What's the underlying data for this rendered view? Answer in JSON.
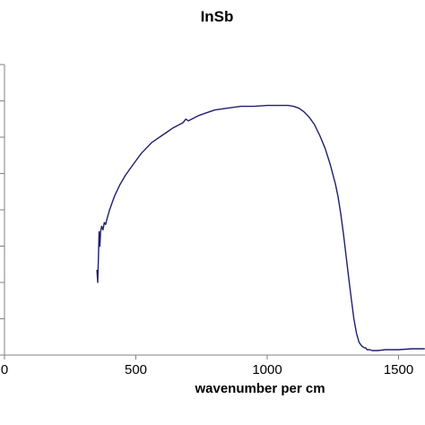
{
  "chart_data": {
    "type": "line",
    "title": "InSb",
    "xlabel": "wavenumber per cm",
    "ylabel": "",
    "xlim": [
      0,
      1600
    ],
    "x_ticks": [
      0,
      500,
      1000,
      1500
    ],
    "x_tick_labels": [
      "0",
      "500",
      "1000",
      "1500"
    ],
    "y_tick_count": 9,
    "grid": false,
    "legend": "none",
    "line_color": "#1f1f6b",
    "series": [
      {
        "x": [
          352,
          355,
          358,
          360,
          363,
          366,
          370,
          375,
          380,
          385,
          390,
          400,
          410,
          420,
          440,
          460,
          480,
          500,
          520,
          540,
          560,
          580,
          600,
          620,
          640,
          660,
          680,
          690,
          700,
          720,
          740,
          760,
          780,
          800,
          850,
          900,
          950,
          1000,
          1050,
          1080,
          1100,
          1120,
          1140,
          1160,
          1180,
          1200,
          1220,
          1240,
          1260,
          1270,
          1280,
          1290,
          1300,
          1310,
          1320,
          1330,
          1340,
          1350,
          1360,
          1370,
          1375,
          1380,
          1390,
          1400,
          1420,
          1450,
          1500,
          1550,
          1600
        ],
        "y": [
          0.45,
          0.38,
          0.54,
          0.66,
          0.58,
          0.66,
          0.69,
          0.67,
          0.71,
          0.7,
          0.73,
          0.78,
          0.82,
          0.86,
          0.92,
          0.97,
          1.01,
          1.05,
          1.09,
          1.12,
          1.15,
          1.17,
          1.19,
          1.21,
          1.23,
          1.245,
          1.26,
          1.28,
          1.27,
          1.285,
          1.3,
          1.31,
          1.32,
          1.33,
          1.34,
          1.35,
          1.35,
          1.355,
          1.355,
          1.355,
          1.35,
          1.34,
          1.32,
          1.29,
          1.25,
          1.19,
          1.12,
          1.03,
          0.92,
          0.85,
          0.76,
          0.65,
          0.53,
          0.41,
          0.29,
          0.18,
          0.1,
          0.05,
          0.03,
          0.02,
          0.02,
          0.01,
          0.01,
          0.005,
          0.005,
          0.01,
          0.01,
          0.015,
          0.015
        ]
      }
    ],
    "ylim": [
      0,
      1.6
    ]
  }
}
